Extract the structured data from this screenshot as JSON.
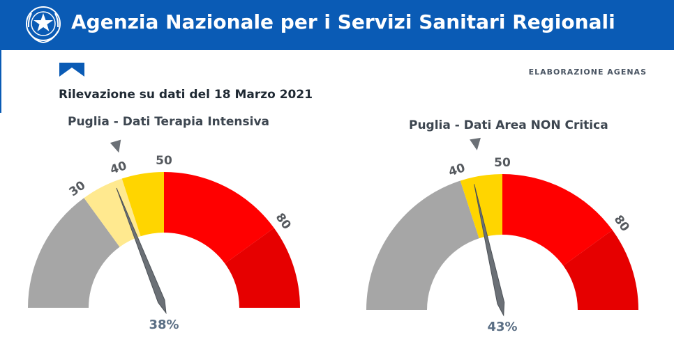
{
  "header": {
    "title": "Agenzia Nazionale per i Servizi Sanitari Regionali",
    "background": "#0a5bb5",
    "emblem_icon": "italian-republic-emblem-icon"
  },
  "subheader": {
    "elaboration_label": "ELABORAZIONE AGENAS",
    "survey_date": "Rilevazione su dati del 18 Marzo 2021"
  },
  "colors": {
    "gray": "#a6a6a6",
    "light_yellow": "#ffe98f",
    "yellow": "#ffd500",
    "red": "#ff0000",
    "dark_red": "#e60000",
    "needle": "#6b7076",
    "value_text": "#5a6e84",
    "tick_text": "#55595e"
  },
  "chart_data": [
    {
      "type": "gauge",
      "title": "Puglia - Dati Terapia Intensiva",
      "value": 38,
      "value_label": "38%",
      "marker_value": 41,
      "range": [
        0,
        100
      ],
      "bands": [
        {
          "from": 0,
          "to": 30,
          "color": "#a6a6a6"
        },
        {
          "from": 30,
          "to": 40,
          "color": "#ffe98f"
        },
        {
          "from": 40,
          "to": 50,
          "color": "#ffd500"
        },
        {
          "from": 50,
          "to": 80,
          "color": "#ff0000"
        },
        {
          "from": 80,
          "to": 100,
          "color": "#e60000"
        }
      ],
      "tick_labels": [
        {
          "value": 30,
          "label": "30"
        },
        {
          "value": 40,
          "label": "40"
        },
        {
          "value": 50,
          "label": "50"
        },
        {
          "value": 80,
          "label": "80"
        }
      ]
    },
    {
      "type": "gauge",
      "title": "Puglia - Dati Area NON Critica",
      "value": 43,
      "value_label": "43%",
      "marker_value": 45,
      "range": [
        0,
        100
      ],
      "bands": [
        {
          "from": 0,
          "to": 40,
          "color": "#a6a6a6"
        },
        {
          "from": 40,
          "to": 50,
          "color": "#ffd500"
        },
        {
          "from": 50,
          "to": 80,
          "color": "#ff0000"
        },
        {
          "from": 80,
          "to": 100,
          "color": "#e60000"
        }
      ],
      "tick_labels": [
        {
          "value": 40,
          "label": "40"
        },
        {
          "value": 50,
          "label": "50"
        },
        {
          "value": 80,
          "label": "80"
        }
      ]
    }
  ]
}
